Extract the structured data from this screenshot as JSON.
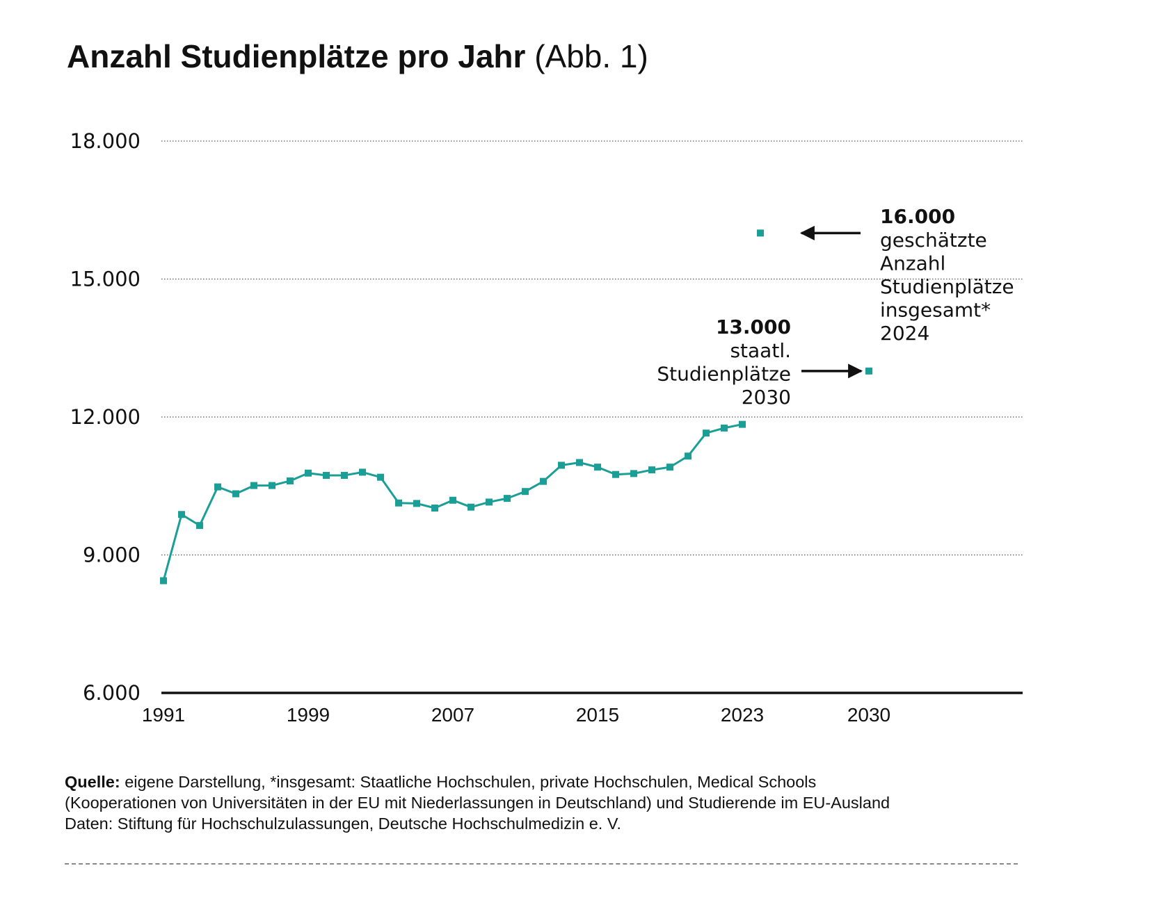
{
  "title": {
    "main": "Anzahl Studienplätze pro Jahr",
    "suffix": "(Abb. 1)"
  },
  "chart_data": {
    "type": "line",
    "title": "Anzahl Studienplätze pro Jahr (Abb. 1)",
    "xlabel": "",
    "ylabel": "",
    "ylim": [
      6000,
      18000
    ],
    "xlim": [
      1991,
      2038
    ],
    "y_ticks": [
      6000,
      9000,
      12000,
      15000,
      18000
    ],
    "y_tick_labels": [
      "6.000",
      "9.000",
      "12.000",
      "15.000",
      "18.000"
    ],
    "x_ticks": [
      1991,
      1999,
      2007,
      2015,
      2023,
      2030
    ],
    "x_tick_labels": [
      "1991",
      "1999",
      "2007",
      "2015",
      "2023",
      "2030"
    ],
    "grid": "horizontal dotted",
    "color": "#1a9e96",
    "series": [
      {
        "x": [
          1991,
          1992,
          1993,
          1994,
          1995,
          1996,
          1997,
          1998,
          1999,
          2000,
          2001,
          2002,
          2003,
          2004,
          2005,
          2006,
          2007,
          2008,
          2009,
          2010,
          2011,
          2012,
          2013,
          2014,
          2015,
          2016,
          2017,
          2018,
          2019,
          2020,
          2021,
          2022,
          2023
        ],
        "values": [
          8440,
          9880,
          9640,
          10480,
          10330,
          10510,
          10510,
          10610,
          10780,
          10730,
          10730,
          10800,
          10690,
          10130,
          10120,
          10020,
          10190,
          10040,
          10150,
          10230,
          10380,
          10600,
          10950,
          11010,
          10910,
          10750,
          10770,
          10850,
          10910,
          11150,
          11650,
          11760,
          11840
        ]
      }
    ],
    "points": [
      {
        "x": 2024,
        "y": 16000,
        "value_label": "16.000",
        "lines": [
          "geschätzte",
          "Anzahl",
          "Studienplätze",
          "insgesamt*",
          "2024"
        ]
      },
      {
        "x": 2030,
        "y": 13000,
        "value_label": "13.000",
        "lines": [
          "staatl.",
          "Studienplätze",
          "2030"
        ]
      }
    ]
  },
  "footer": {
    "source_label": "Quelle:",
    "source_text": " eigene Darstellung, *insgesamt: Staatliche Hochschulen, private Hochschulen, Medical Schools",
    "line2": "(Kooperationen von Universitäten in der EU mit Niederlassungen in Deutschland) und Studierende im EU-Ausland",
    "line3": "Daten: Stiftung für Hochschulzulassungen, Deutsche Hochschulmedizin e. V."
  }
}
